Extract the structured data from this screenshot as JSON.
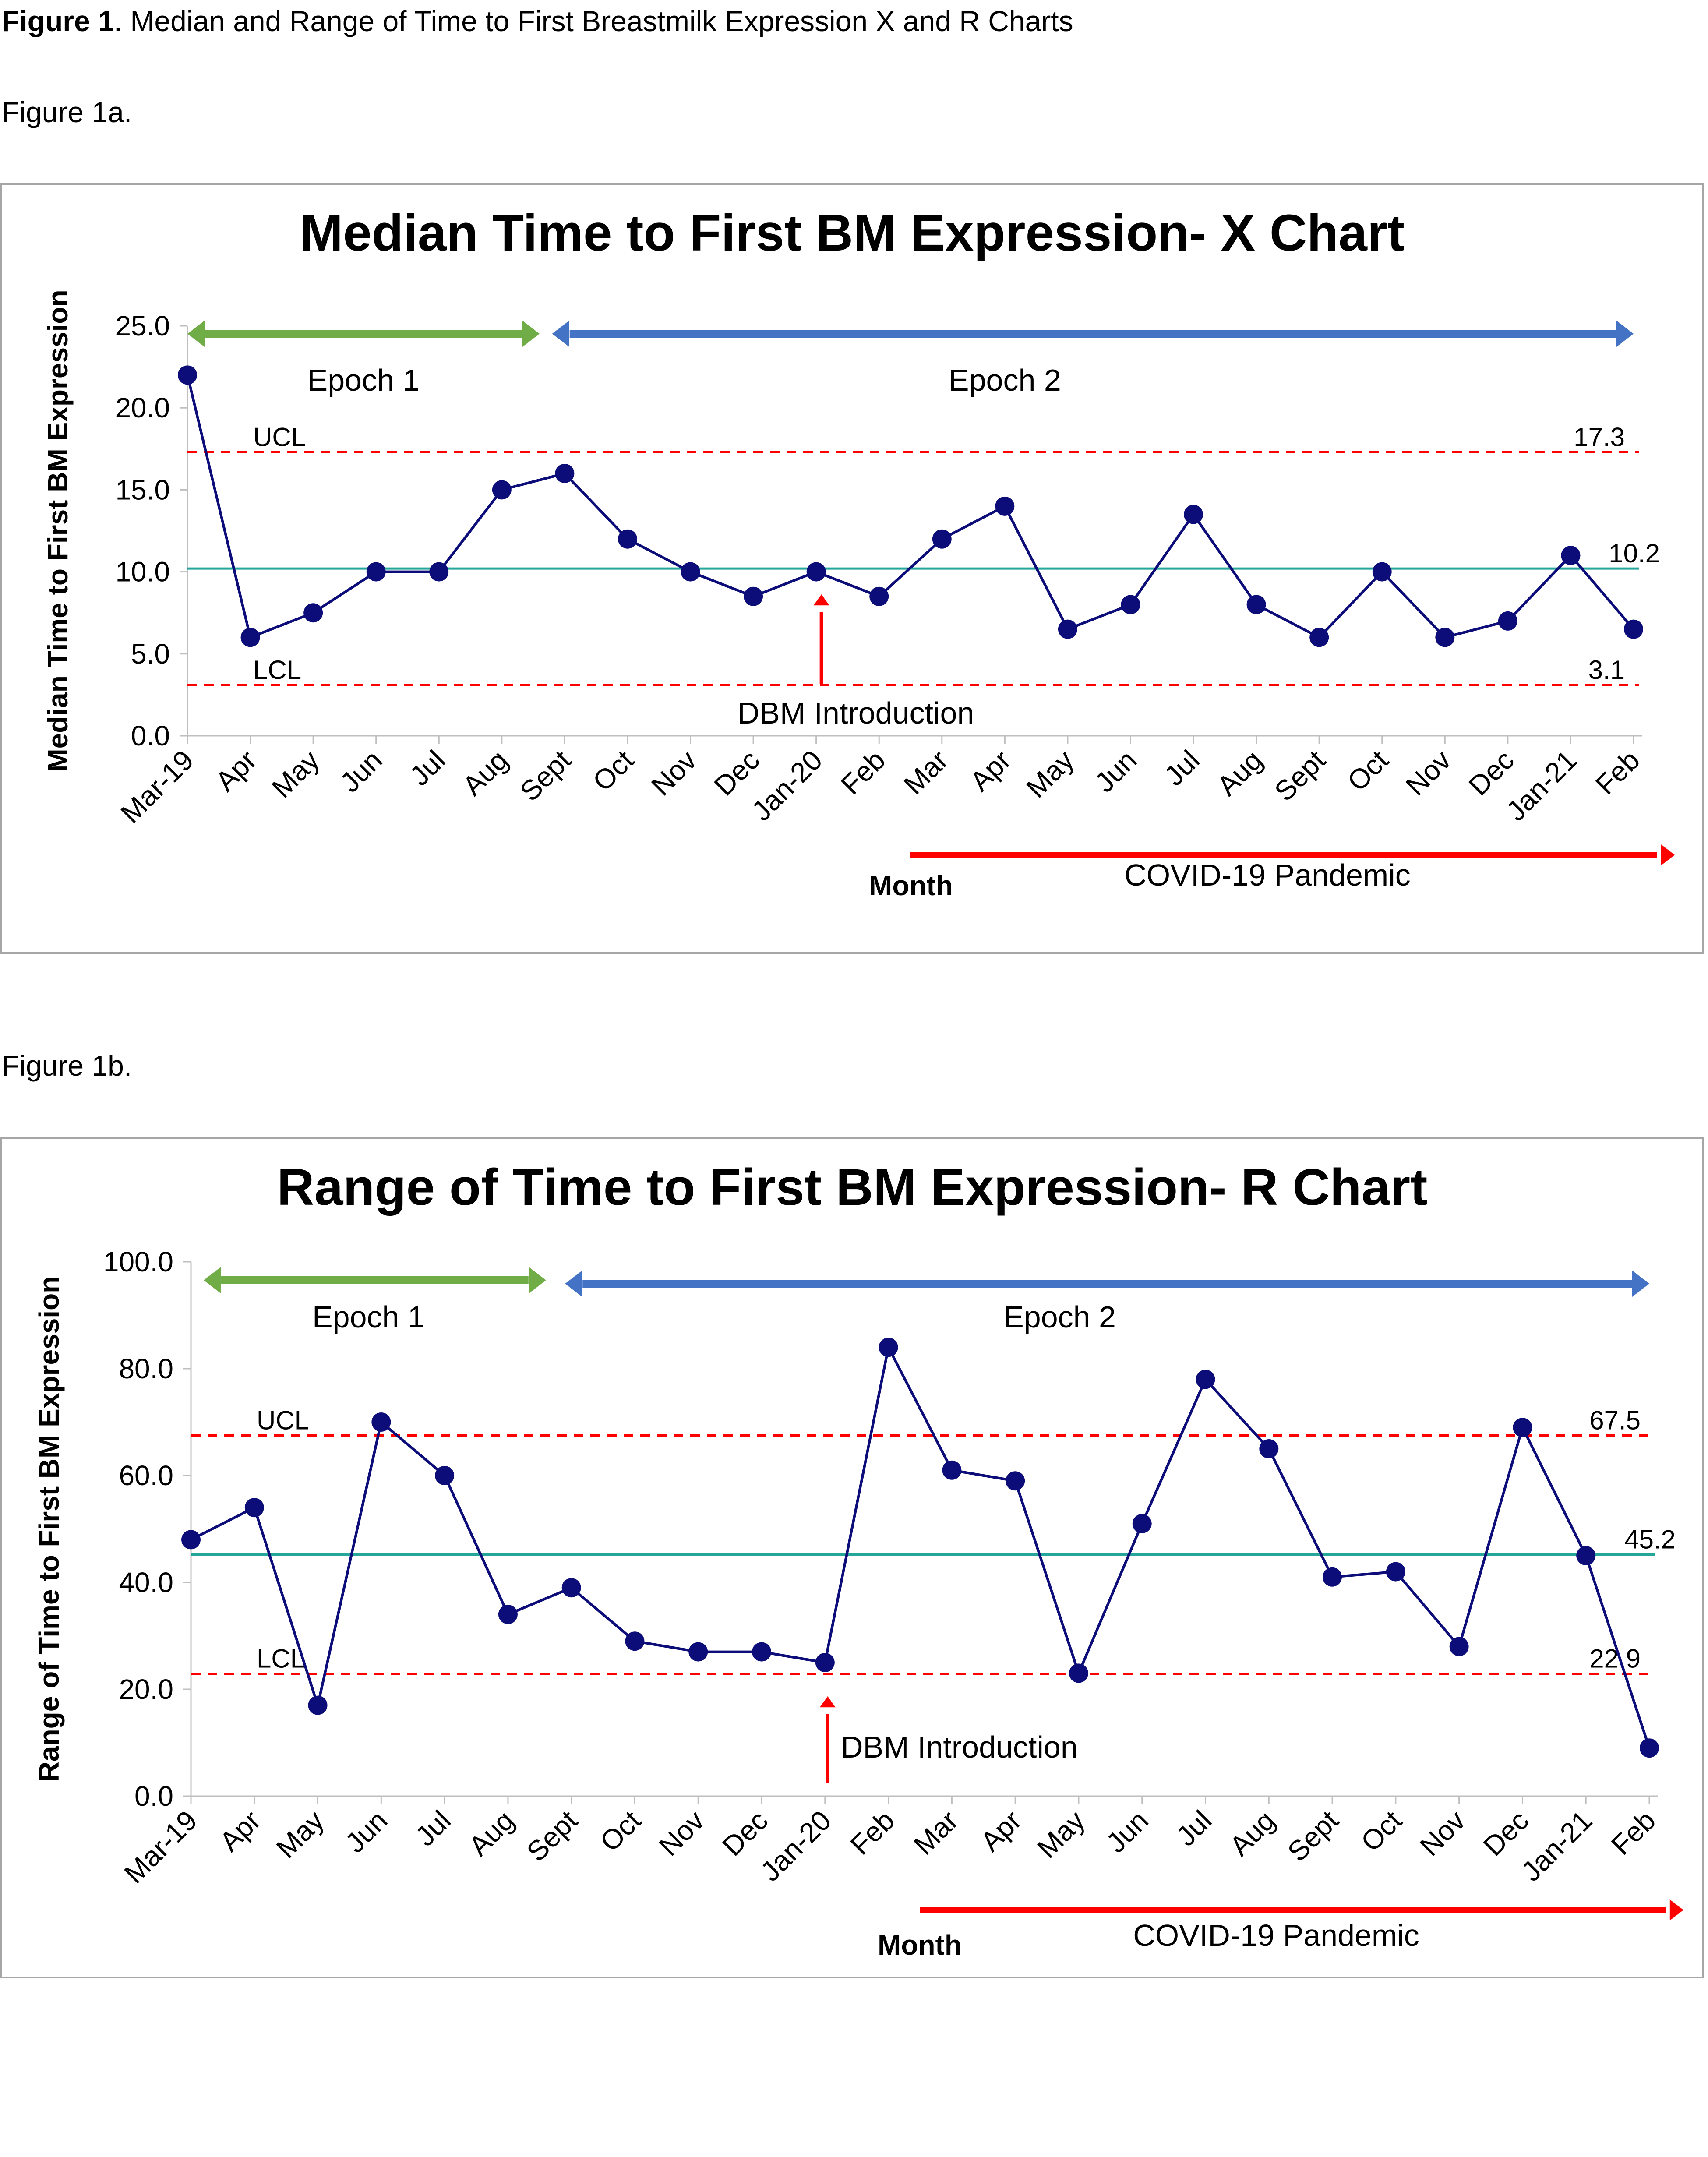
{
  "caption": {
    "prefix": "Figure 1",
    "text": ". Median and Range of Time to First Breastmilk Expression X and R Charts"
  },
  "figure_1a_label": "Figure 1a.",
  "figure_1b_label": "Figure 1b.",
  "colors": {
    "series": "#0d0d7a",
    "centerline": "#26a69a",
    "limits": "#ff0000",
    "epoch1": "#70ad47",
    "epoch2": "#4472c4",
    "annotation": "#ff0000",
    "border": "#a6a6a6"
  },
  "chart_data": [
    {
      "type": "line",
      "title": "Median Time to First BM Expression- X Chart",
      "xlabel": "Month",
      "ylabel": "Median Time to First BM Expression",
      "categories": [
        "Mar-19",
        "Apr",
        "May",
        "Jun",
        "Jul",
        "Aug",
        "Sept",
        "Oct",
        "Nov",
        "Dec",
        "Jan-20",
        "Feb",
        "Mar",
        "Apr",
        "May",
        "Jun",
        "Jul",
        "Aug",
        "Sept",
        "Oct",
        "Nov",
        "Dec",
        "Jan-21",
        "Feb"
      ],
      "values": [
        22.0,
        6.0,
        7.5,
        10.0,
        10.0,
        15.0,
        16.0,
        12.0,
        10.0,
        8.5,
        10.0,
        8.5,
        12.0,
        14.0,
        6.5,
        8.0,
        13.5,
        8.0,
        6.0,
        10.0,
        6.0,
        7.0,
        11.0,
        6.5
      ],
      "ylim": [
        0,
        25
      ],
      "yticks": [
        "0.0",
        "5.0",
        "10.0",
        "15.0",
        "20.0",
        "25.0"
      ],
      "center_line": {
        "value": 10.2,
        "label": "10.2"
      },
      "ucl": {
        "value": 17.3,
        "label": "17.3",
        "name": "UCL"
      },
      "lcl": {
        "value": 3.1,
        "label": "3.1",
        "name": "LCL"
      },
      "epochs": [
        {
          "label": "Epoch 1",
          "from": 0,
          "to": 5.6
        },
        {
          "label": "Epoch 2",
          "from": 5.8,
          "to": 23
        }
      ],
      "dbm_introduction": {
        "label": "DBM Introduction",
        "at_index": 10
      },
      "covid_label": "COVID-19 Pandemic",
      "covid_from_index": 11.5,
      "grid": false
    },
    {
      "type": "line",
      "title": "Range of Time to First BM Expression- R Chart",
      "xlabel": "Month",
      "ylabel": "Range of Time to First BM Expression",
      "categories": [
        "Mar-19",
        "Apr",
        "May",
        "Jun",
        "Jul",
        "Aug",
        "Sept",
        "Oct",
        "Nov",
        "Dec",
        "Jan-20",
        "Feb",
        "Mar",
        "Apr",
        "May",
        "Jun",
        "Jul",
        "Aug",
        "Sept",
        "Oct",
        "Nov",
        "Dec",
        "Jan-21",
        "Feb"
      ],
      "values": [
        48,
        54,
        17,
        70,
        60,
        34,
        39,
        29,
        27,
        27,
        25,
        84,
        61,
        59,
        23,
        51,
        78,
        65,
        41,
        42,
        28,
        69,
        45,
        9
      ],
      "ylim": [
        0,
        100
      ],
      "yticks": [
        "0.0",
        "20.0",
        "40.0",
        "60.0",
        "80.0",
        "100.0"
      ],
      "center_line": {
        "value": 45.2,
        "label": "45.2"
      },
      "ucl": {
        "value": 67.5,
        "label": "67.5",
        "name": "UCL"
      },
      "lcl": {
        "value": 22.9,
        "label": "22.9",
        "name": "LCL"
      },
      "epochs": [
        {
          "label": "Epoch 1",
          "from": 0.2,
          "to": 5.6
        },
        {
          "label": "Epoch 2",
          "from": 5.9,
          "to": 23
        }
      ],
      "dbm_introduction": {
        "label": "DBM Introduction",
        "at_index": 10
      },
      "covid_label": "COVID-19 Pandemic",
      "covid_from_index": 11.5,
      "grid": false
    }
  ]
}
